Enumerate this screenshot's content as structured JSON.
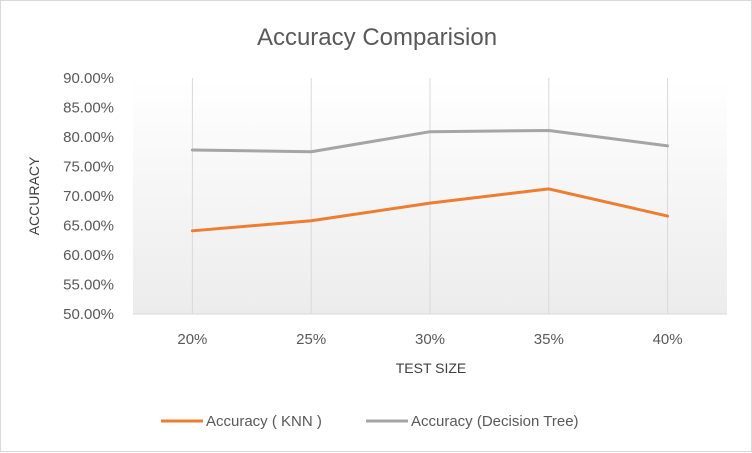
{
  "chart_data": {
    "type": "line",
    "title": "Accuracy  Comparision",
    "xlabel": "TEST SIZE",
    "ylabel": "ACCURACY",
    "categories": [
      "20%",
      "25%",
      "30%",
      "35%",
      "40%"
    ],
    "ylim": [
      0.5,
      0.9
    ],
    "y_ticks": [
      0.5,
      0.55,
      0.6,
      0.65,
      0.7,
      0.75,
      0.8,
      0.85,
      0.9
    ],
    "y_tick_labels": [
      "50.00%",
      "55.00%",
      "60.00%",
      "65.00%",
      "70.00%",
      "75.00%",
      "80.00%",
      "85.00%",
      "90.00%"
    ],
    "grid": "vertical",
    "legend_position": "bottom",
    "series": [
      {
        "name": "Accuracy ( KNN )",
        "color": "#ed7d31",
        "values": [
          0.641,
          0.658,
          0.688,
          0.712,
          0.666
        ]
      },
      {
        "name": "Accuracy (Decision Tree)",
        "color": "#a5a5a5",
        "values": [
          0.778,
          0.775,
          0.809,
          0.811,
          0.785
        ]
      }
    ]
  }
}
